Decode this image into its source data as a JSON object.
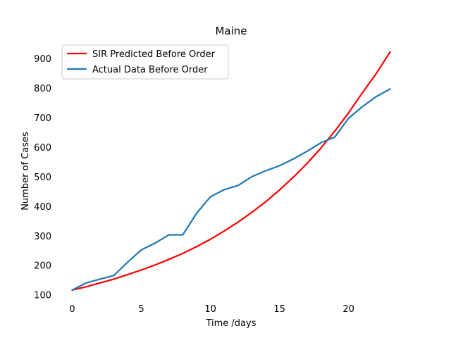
{
  "chart_data": {
    "type": "line",
    "title": "Maine",
    "xlabel": "Time /days",
    "ylabel": "Number of Cases",
    "xlim": [
      -1.15,
      24.15
    ],
    "ylim": [
      80,
      960
    ],
    "xticks": [
      0,
      5,
      10,
      15,
      20
    ],
    "yticks": [
      100,
      200,
      300,
      400,
      500,
      600,
      700,
      800,
      900
    ],
    "grid": false,
    "legend_position": "upper-left",
    "series": [
      {
        "name": "SIR Predicted Before Order",
        "color": "#ff0000",
        "x": [
          0,
          1,
          2,
          3,
          4,
          5,
          6,
          7,
          8,
          9,
          10,
          11,
          12,
          13,
          14,
          15,
          16,
          17,
          18,
          19,
          20,
          21,
          22,
          23
        ],
        "y": [
          116,
          127,
          140,
          153,
          168,
          184,
          201,
          220,
          240,
          263,
          288,
          316,
          346,
          379,
          415,
          455,
          498,
          545,
          597,
          654,
          716,
          784,
          849,
          922
        ]
      },
      {
        "name": "Actual Data Before Order",
        "color": "#1f77b4",
        "x": [
          0,
          1,
          2,
          3,
          4,
          5,
          6,
          7,
          8,
          9,
          10,
          11,
          12,
          13,
          14,
          15,
          16,
          17,
          18,
          19,
          20,
          21,
          22,
          23
        ],
        "y": [
          116,
          140,
          153,
          165,
          210,
          252,
          275,
          303,
          303,
          376,
          432,
          456,
          470,
          500,
          520,
          537,
          560,
          586,
          615,
          634,
          698,
          737,
          771,
          797
        ]
      }
    ]
  }
}
